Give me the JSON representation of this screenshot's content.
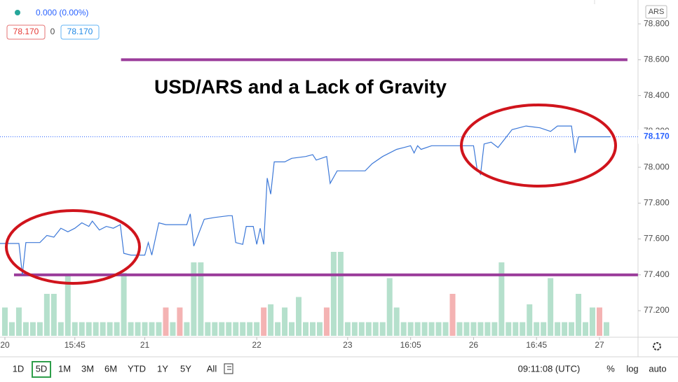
{
  "header": {
    "change": "0.000 (0.00%)",
    "bid": "78.170",
    "spread": "0",
    "ask": "78.170",
    "currency": "ARS"
  },
  "chart_data": {
    "type": "line",
    "title": "USD/ARS and a Lack of Gravity",
    "color": "#3c78d8",
    "x": [
      -0.7,
      2,
      2.5,
      3,
      5,
      6,
      7,
      8,
      9,
      10,
      11,
      12,
      12.5,
      13.5,
      14.5,
      15.5,
      16.5,
      17,
      18,
      20,
      20.5,
      21,
      22,
      23,
      26,
      26.5,
      27,
      28.5,
      30,
      32,
      32.5,
      33,
      34,
      34.5,
      35.5,
      36,
      36.5,
      37,
      37.5,
      38,
      38.5,
      40,
      41,
      43,
      44,
      44.5,
      46,
      46.5,
      47.5,
      51.5,
      52.5,
      54,
      56,
      57,
      58,
      58.5,
      59,
      59.5,
      61,
      67,
      67.5,
      68,
      68.5,
      69.5,
      70.5,
      71.5,
      72.5,
      73.5,
      74.5,
      76.5,
      78,
      79,
      81,
      81.5,
      82,
      86.5
    ],
    "values": [
      77.575,
      77.575,
      77.4,
      77.58,
      77.58,
      77.62,
      77.61,
      77.66,
      77.64,
      77.66,
      77.69,
      77.67,
      77.7,
      77.65,
      77.67,
      77.66,
      77.68,
      77.52,
      77.51,
      77.51,
      77.58,
      77.51,
      77.69,
      77.68,
      77.68,
      77.74,
      77.56,
      77.71,
      77.72,
      77.73,
      77.73,
      77.58,
      77.57,
      77.67,
      77.67,
      77.57,
      77.66,
      77.57,
      77.94,
      77.85,
      78.03,
      78.03,
      78.05,
      78.06,
      78.07,
      78.04,
      78.06,
      77.91,
      77.98,
      77.98,
      78.02,
      78.06,
      78.1,
      78.11,
      78.12,
      78.08,
      78.12,
      78.1,
      78.12,
      78.12,
      77.99,
      77.96,
      78.13,
      78.14,
      78.11,
      78.16,
      78.21,
      78.22,
      78.23,
      78.22,
      78.2,
      78.23,
      78.23,
      78.08,
      78.17,
      78.17
    ],
    "xlim": [
      -0.7,
      90.5
    ],
    "ylim": [
      77.052,
      78.933
    ],
    "xticks": [
      {
        "value": 0,
        "label": "20"
      },
      {
        "value": 10,
        "label": "15:45"
      },
      {
        "value": 20,
        "label": "21"
      },
      {
        "value": 36,
        "label": "22"
      },
      {
        "value": 49,
        "label": "23"
      },
      {
        "value": 58,
        "label": "16:05"
      },
      {
        "value": 67,
        "label": "26"
      },
      {
        "value": 76,
        "label": "16:45"
      },
      {
        "value": 85,
        "label": "27"
      }
    ],
    "yticks": [
      {
        "value": 77.2,
        "label": "77.200"
      },
      {
        "value": 77.4,
        "label": "77.400"
      },
      {
        "value": 77.6,
        "label": "77.600"
      },
      {
        "value": 77.8,
        "label": "77.800"
      },
      {
        "value": 78.0,
        "label": "78.000"
      },
      {
        "value": 78.2,
        "label": "78.200"
      },
      {
        "value": 78.4,
        "label": "78.400"
      },
      {
        "value": 78.6,
        "label": "78.600"
      },
      {
        "value": 78.8,
        "label": "78.800"
      }
    ],
    "last": {
      "value": 78.17,
      "label": "78.170",
      "color": "#2962ff"
    },
    "hlines": [
      {
        "value": 78.6,
        "x": [
          16.6,
          89
        ],
        "color": "#9b3d9b"
      },
      {
        "value": 77.4,
        "x": [
          1.3,
          90.5
        ],
        "color": "#9b3d9b"
      }
    ],
    "volume": {
      "color": "#b5e0cc",
      "down_color": "#f4b3b3",
      "ylim": [
        0,
        10
      ],
      "down_x": [
        23,
        25,
        37,
        46,
        64,
        85
      ],
      "x": [
        0,
        1,
        2,
        3,
        4,
        5,
        6,
        7,
        8,
        9,
        10,
        11,
        12,
        13,
        14,
        15,
        16,
        17,
        18,
        19,
        20,
        21,
        22,
        23,
        24,
        25,
        26,
        27,
        28,
        29,
        30,
        31,
        32,
        33,
        34,
        35,
        36,
        37,
        38,
        39,
        40,
        41,
        42,
        43,
        44,
        45,
        46,
        47,
        48,
        49,
        50,
        51,
        52,
        53,
        54,
        55,
        56,
        57,
        58,
        59,
        60,
        61,
        62,
        63,
        64,
        65,
        66,
        67,
        68,
        69,
        70,
        71,
        72,
        73,
        74,
        75,
        76,
        77,
        78,
        79,
        80,
        81,
        82,
        83,
        84,
        85,
        86
      ],
      "values": [
        2.7,
        1.3,
        2.7,
        1.3,
        1.3,
        1.3,
        4,
        4,
        1.3,
        5.7,
        1.3,
        1.3,
        1.3,
        1.3,
        1.3,
        1.3,
        1.3,
        6,
        1.3,
        1.3,
        1.3,
        1.3,
        1.3,
        2.7,
        1.3,
        2.7,
        1.3,
        7,
        7,
        1.3,
        1.3,
        1.3,
        1.3,
        1.3,
        1.3,
        1.3,
        1.3,
        2.7,
        3,
        1.3,
        2.7,
        1.3,
        3.7,
        1.3,
        1.3,
        1.3,
        2.7,
        8,
        8,
        1.3,
        1.3,
        1.3,
        1.3,
        1.3,
        1.3,
        5.5,
        2.7,
        1.3,
        1.3,
        1.3,
        1.3,
        1.3,
        1.3,
        1.3,
        4,
        1.3,
        1.3,
        1.3,
        1.3,
        1.3,
        1.3,
        7,
        1.3,
        1.3,
        1.3,
        3,
        1.3,
        1.3,
        5.5,
        1.3,
        1.3,
        1.3,
        4,
        1.3,
        2.7,
        2.7,
        1.3
      ]
    }
  },
  "toolbar": {
    "ranges": [
      "1D",
      "5D",
      "1M",
      "3M",
      "6M",
      "YTD",
      "1Y",
      "5Y",
      "All"
    ],
    "active_index": 1,
    "time": "09:11:08 (UTC)",
    "options": [
      "%",
      "log",
      "auto"
    ]
  }
}
